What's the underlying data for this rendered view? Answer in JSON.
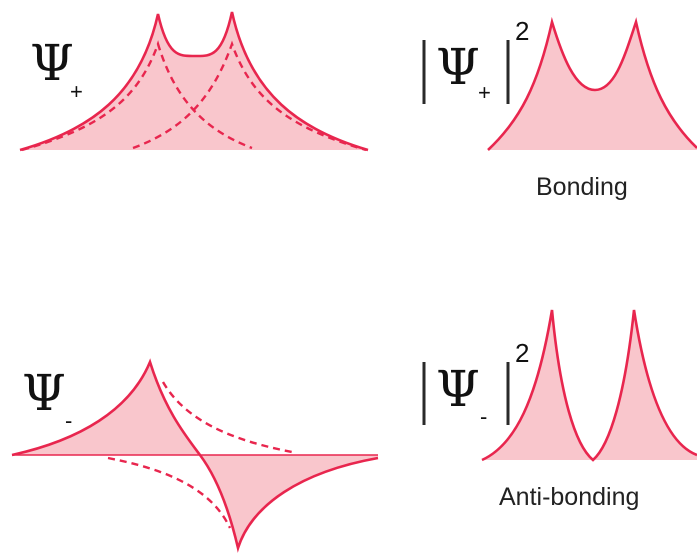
{
  "colors": {
    "curve": "#e8264e",
    "fill": "#f9c6cc",
    "text": "#111111"
  },
  "panels": {
    "bonding_wavefunction": {
      "symbol": "Ψ",
      "subscript": "+"
    },
    "bonding_density": {
      "symbol": "Ψ",
      "subscript": "+",
      "exponent": "2",
      "caption": "Bonding"
    },
    "antibonding_wavefunction": {
      "symbol": "Ψ",
      "subscript": "-"
    },
    "antibonding_density": {
      "symbol": "Ψ",
      "subscript": "-",
      "exponent": "2",
      "caption": "Anti-bonding"
    }
  }
}
